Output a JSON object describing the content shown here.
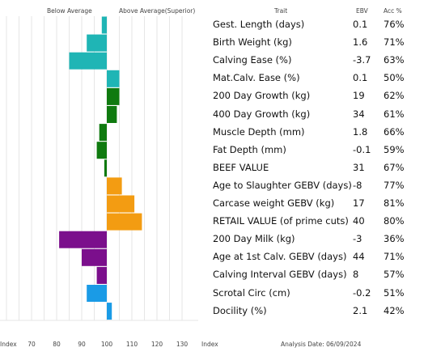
{
  "header": {
    "below": "Below Average",
    "above": "Above Average(Superior)",
    "trait": "Trait",
    "ebv": "EBV",
    "acc": "Acc %"
  },
  "footer": {
    "index_left": "Index",
    "index_right": "Index",
    "analysis_date": "Analysis Date:  06/09/2024"
  },
  "chart_data": {
    "type": "bar",
    "orientation": "horizontal",
    "baseline": 100,
    "xlim": [
      60,
      140
    ],
    "x_ticks": [
      "70",
      "80",
      "90",
      "100",
      "110",
      "120",
      "130"
    ],
    "grid": true,
    "traits": [
      {
        "name": "Gest. Length (days)",
        "ebv": "0.1",
        "acc": "76%",
        "index": 98,
        "color": "#1fb5b5"
      },
      {
        "name": "Birth Weight (kg)",
        "ebv": "1.6",
        "acc": "71%",
        "index": 92,
        "color": "#1fb5b5"
      },
      {
        "name": "Calving Ease (%)",
        "ebv": "-3.7",
        "acc": "63%",
        "index": 85,
        "color": "#1fb5b5"
      },
      {
        "name": "Mat.Calv. Ease (%)",
        "ebv": "0.1",
        "acc": "50%",
        "index": 105,
        "color": "#1fb5b5"
      },
      {
        "name": "200 Day Growth (kg)",
        "ebv": "19",
        "acc": "62%",
        "index": 105,
        "color": "#0f7a0f"
      },
      {
        "name": "400 Day Growth (kg)",
        "ebv": "34",
        "acc": "61%",
        "index": 104,
        "color": "#0f7a0f"
      },
      {
        "name": "Muscle Depth (mm)",
        "ebv": "1.8",
        "acc": "66%",
        "index": 97,
        "color": "#0f7a0f"
      },
      {
        "name": "Fat Depth (mm)",
        "ebv": "-0.1",
        "acc": "59%",
        "index": 96,
        "color": "#0f7a0f"
      },
      {
        "name": "BEEF VALUE",
        "ebv": "31",
        "acc": "67%",
        "index": 99,
        "color": "#0f7a0f"
      },
      {
        "name": "Age to Slaughter GEBV (days)",
        "ebv": "-8",
        "acc": "77%",
        "index": 106,
        "color": "#f39c12"
      },
      {
        "name": "Carcase weight GEBV (kg)",
        "ebv": "17",
        "acc": "81%",
        "index": 111,
        "color": "#f39c12"
      },
      {
        "name": "RETAIL VALUE (of prime cuts)",
        "ebv": "40",
        "acc": "80%",
        "index": 114,
        "color": "#f39c12"
      },
      {
        "name": "200 Day Milk (kg)",
        "ebv": "-3",
        "acc": "36%",
        "index": 81,
        "color": "#7b0f8c"
      },
      {
        "name": "Age at 1st Calv. GEBV (days)",
        "ebv": "44",
        "acc": "71%",
        "index": 90,
        "color": "#7b0f8c"
      },
      {
        "name": "Calving Interval GEBV (days)",
        "ebv": "8",
        "acc": "57%",
        "index": 96,
        "color": "#7b0f8c"
      },
      {
        "name": "Scrotal Circ (cm)",
        "ebv": "-0.2",
        "acc": "51%",
        "index": 92,
        "color": "#1a9be6"
      },
      {
        "name": "Docility (%)",
        "ebv": "2.1",
        "acc": "42%",
        "index": 102,
        "color": "#1a9be6"
      }
    ]
  }
}
